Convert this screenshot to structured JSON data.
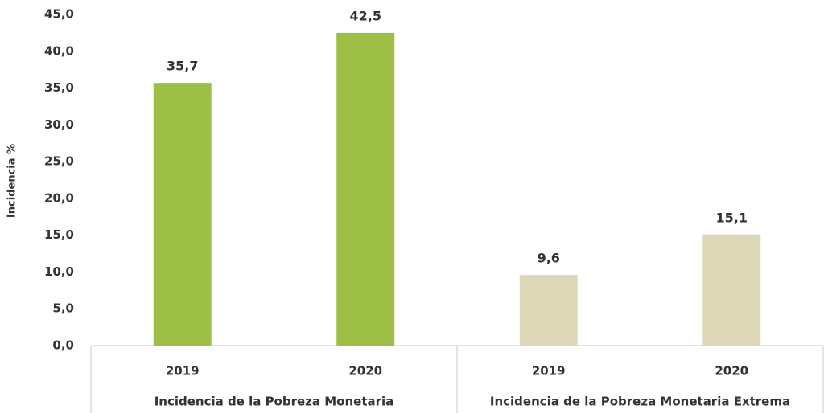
{
  "chart_data": {
    "type": "bar",
    "y_label": "Incidencia %",
    "ylim": [
      0,
      45
    ],
    "yticks": [
      {
        "value": 0,
        "label": "0,0"
      },
      {
        "value": 5,
        "label": "5,0"
      },
      {
        "value": 10,
        "label": "10,0"
      },
      {
        "value": 15,
        "label": "15,0"
      },
      {
        "value": 20,
        "label": "20,0"
      },
      {
        "value": 25,
        "label": "25,0"
      },
      {
        "value": 30,
        "label": "30,0"
      },
      {
        "value": 35,
        "label": "35,0"
      },
      {
        "value": 40,
        "label": "40,0"
      },
      {
        "value": 45,
        "label": "45,0"
      }
    ],
    "groups": [
      {
        "name": "Incidencia de la Pobreza Monetaria",
        "color": "#9dbf45",
        "categories": [
          "2019",
          "2020"
        ],
        "values": [
          35.7,
          42.5
        ],
        "value_labels": [
          "35,7",
          "42,5"
        ]
      },
      {
        "name": "Incidencia de la Pobreza Monetaria Extrema",
        "color": "#dcd8b8",
        "categories": [
          "2019",
          "2020"
        ],
        "values": [
          9.6,
          15.1
        ],
        "value_labels": [
          "9,6",
          "15,1"
        ]
      }
    ]
  }
}
